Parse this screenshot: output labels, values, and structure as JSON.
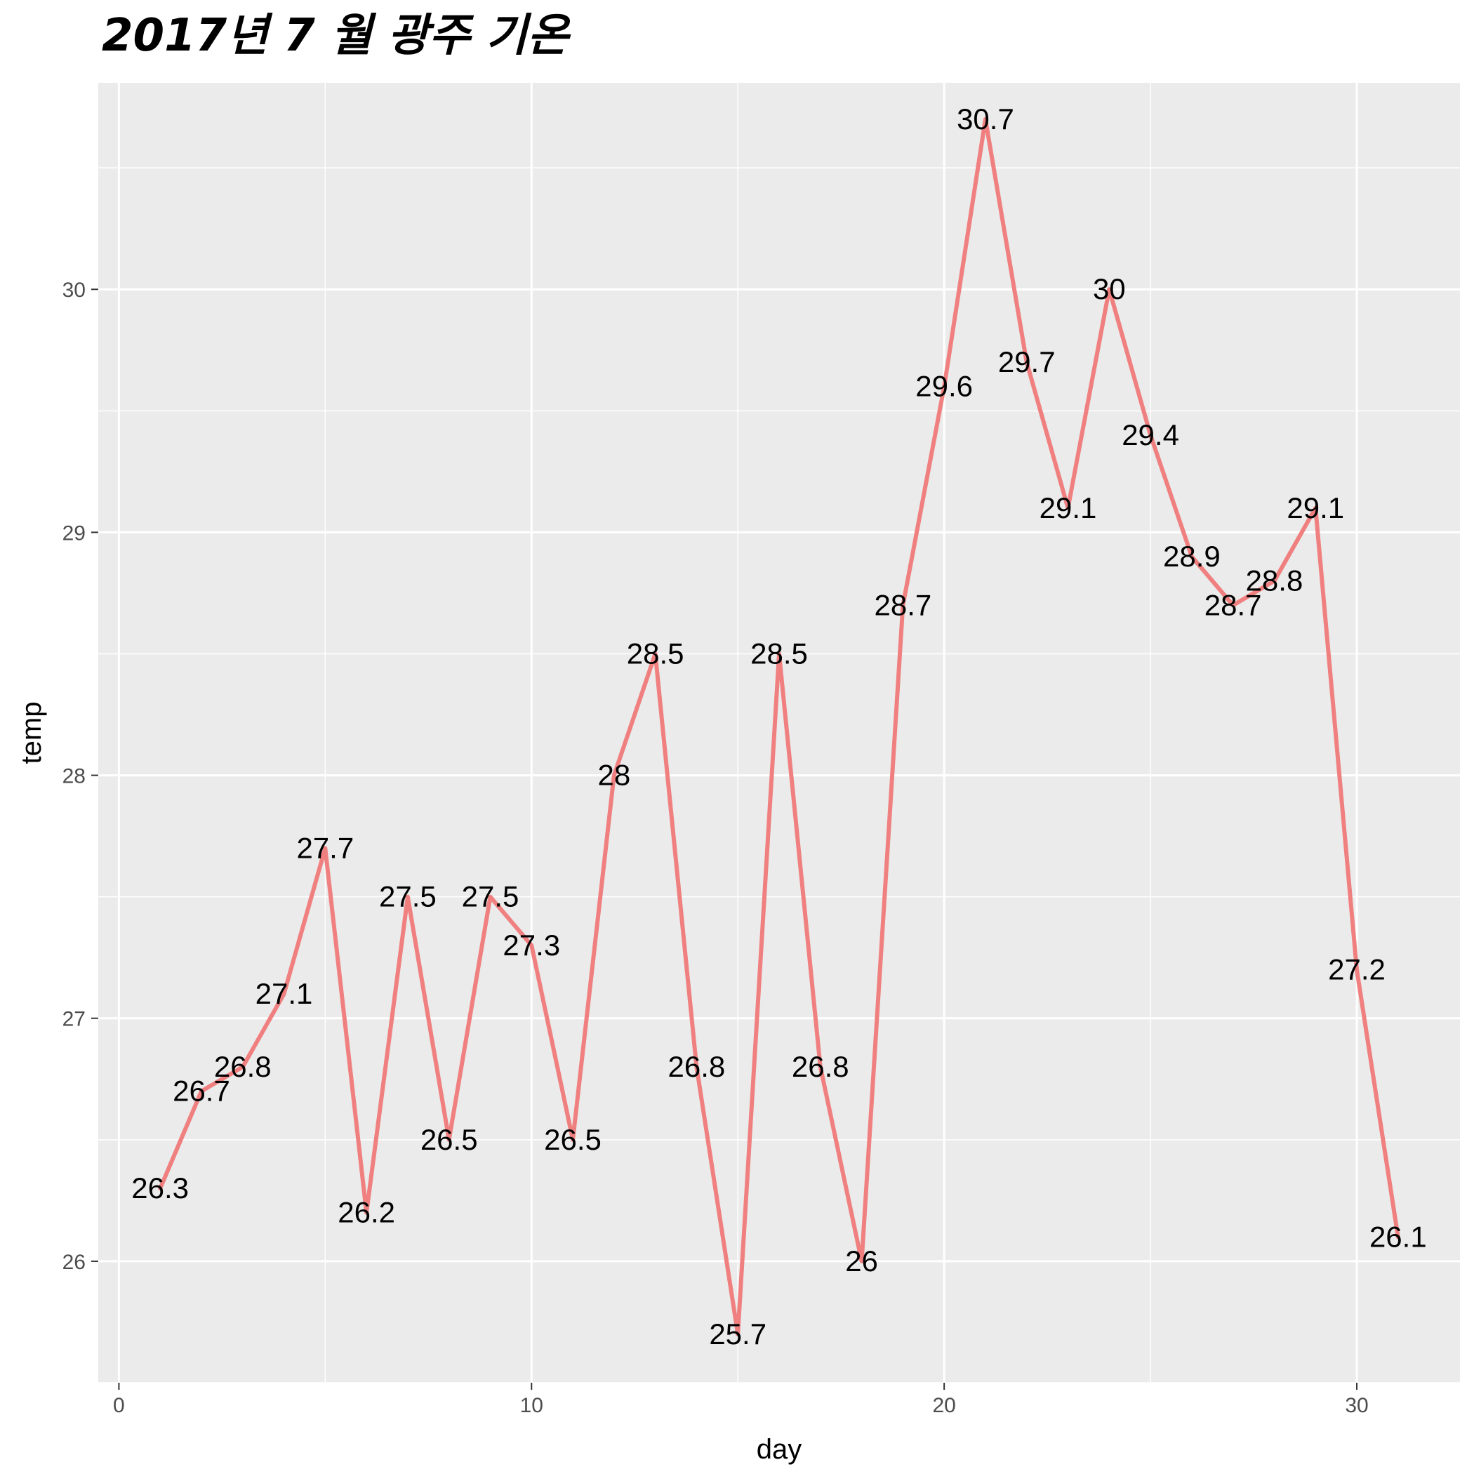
{
  "chart_data": {
    "type": "line",
    "title": "2017년 7 월 광주 기온",
    "xlabel": "day",
    "ylabel": "temp",
    "xlim": [
      -0.5,
      32.5
    ],
    "ylim": [
      25.5,
      30.85
    ],
    "x_ticks": [
      0,
      10,
      20,
      30
    ],
    "y_ticks": [
      26,
      27,
      28,
      29,
      30
    ],
    "grid": true,
    "legend": "none",
    "colors": {
      "line": "#F08080",
      "panel": "#EBEBEB",
      "grid": "#FFFFFF",
      "tick_text": "#4D4D4D"
    },
    "series": [
      {
        "x": [
          1,
          2,
          3,
          4,
          5,
          6,
          7,
          8,
          9,
          10,
          11,
          12,
          13,
          14,
          15,
          16,
          17,
          18,
          19,
          20,
          21,
          22,
          23,
          24,
          25,
          26,
          27,
          28,
          29,
          30,
          31
        ],
        "values": [
          26.3,
          26.7,
          26.8,
          27.1,
          27.7,
          26.2,
          27.5,
          26.5,
          27.5,
          27.3,
          26.5,
          28,
          28.5,
          26.8,
          25.7,
          28.5,
          26.8,
          26,
          28.7,
          29.6,
          30.7,
          29.7,
          29.1,
          30,
          29.4,
          28.9,
          28.7,
          28.8,
          29.1,
          27.2,
          26.1
        ],
        "labels": [
          "26.3",
          "26.7",
          "26.8",
          "27.1",
          "27.7",
          "26.2",
          "27.5",
          "26.5",
          "27.5",
          "27.3",
          "26.5",
          "28",
          "28.5",
          "26.8",
          "25.7",
          "28.5",
          "26.8",
          "26",
          "28.7",
          "29.6",
          "30.7",
          "29.7",
          "29.1",
          "30",
          "29.4",
          "28.9",
          "28.7",
          "28.8",
          "29.1",
          "27.2",
          "26.1"
        ]
      }
    ]
  }
}
